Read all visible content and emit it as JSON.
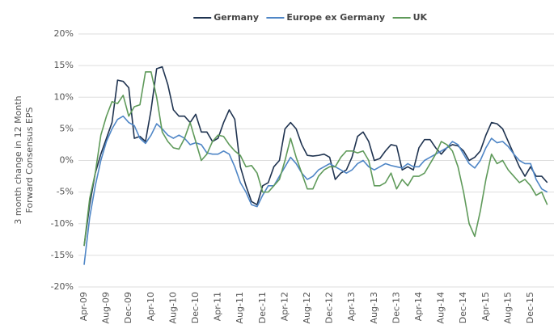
{
  "chart_data": {
    "type": "line",
    "ylabel": [
      "3 month change in 12 Month",
      "Forward Consensus EPS"
    ],
    "categories": [
      "Apr-09",
      null,
      null,
      null,
      "Aug-09",
      null,
      null,
      null,
      "Dec-09",
      null,
      null,
      null,
      "Apr-10",
      null,
      null,
      null,
      "Aug-10",
      null,
      null,
      null,
      "Dec-10",
      null,
      null,
      null,
      "Apr-11",
      null,
      null,
      null,
      "Aug-11",
      null,
      null,
      null,
      "Dec-11",
      null,
      null,
      null,
      "Apr-12",
      null,
      null,
      null,
      "Aug-12",
      null,
      null,
      null,
      "Dec-12",
      null,
      null,
      null,
      "Apr-13",
      null,
      null,
      null,
      "Aug-13",
      null,
      null,
      null,
      "Dec-13",
      null,
      null,
      null,
      "Apr-14",
      null,
      null,
      null,
      "Aug-14",
      null,
      null,
      null,
      "Dec-14",
      null,
      null,
      null,
      "Apr-15",
      null,
      null,
      null,
      "Aug-15",
      null,
      null,
      null,
      "Dec-15",
      null,
      null,
      null
    ],
    "series": [
      {
        "name": "Germany",
        "color": "#1f3350",
        "values": [
          -13.5,
          -7,
          -2,
          1,
          3.5,
          6,
          12.7,
          12.5,
          11.5,
          3.5,
          3.8,
          3,
          8,
          14.5,
          14.8,
          12,
          8,
          7,
          7,
          6,
          7.3,
          4.5,
          4.5,
          3,
          3.5,
          6,
          8,
          6.5,
          -1,
          -4,
          -6.5,
          -7,
          -4,
          -3.5,
          -1,
          0,
          5,
          6,
          5,
          2.5,
          0.8,
          0.7,
          0.8,
          1,
          0.5,
          -3,
          -2,
          -1.5,
          0.5,
          3.8,
          4.5,
          3,
          0,
          0.3,
          1.5,
          2.5,
          2.3,
          -1.5,
          -1,
          -1.5,
          2,
          3.3,
          3.3,
          2,
          1,
          2,
          2.5,
          2.3,
          1.5,
          0,
          0.5,
          1.5,
          4,
          6,
          5.8,
          5,
          3,
          1,
          -1,
          -2.5,
          -1,
          -2.5,
          -2.5,
          -3.5
        ]
      },
      {
        "name": "Europe ex Germany",
        "color": "#4f86c6",
        "values": [
          -16.5,
          -9,
          -4,
          0,
          3,
          5,
          6.5,
          7,
          6,
          5.5,
          3.5,
          2.7,
          4,
          5.8,
          5,
          4,
          3.5,
          4,
          3.5,
          2.5,
          2.8,
          2.5,
          1.2,
          1,
          1,
          1.5,
          1,
          -1,
          -3.5,
          -5,
          -7,
          -7.3,
          -5.5,
          -4,
          -4,
          -2.5,
          -1,
          0.5,
          -0.5,
          -2,
          -3,
          -2.5,
          -1.5,
          -1,
          -0.5,
          -1,
          -1.5,
          -2,
          -1.5,
          -0.5,
          0,
          -1,
          -1.5,
          -1,
          -0.5,
          -0.8,
          -1,
          -1.2,
          -0.5,
          -1,
          -1,
          0,
          0.5,
          1,
          1.5,
          2,
          3,
          2.5,
          1,
          -0.5,
          -1.2,
          0,
          2,
          3.5,
          2.8,
          3,
          2.2,
          1,
          0,
          -0.5,
          -0.5,
          -3,
          -4.5,
          -5
        ]
      },
      {
        "name": "UK",
        "color": "#5f9a5a",
        "values": [
          -13.5,
          -6,
          -2,
          4,
          7,
          9.3,
          9,
          10.3,
          7,
          8.5,
          8.8,
          14,
          14,
          10,
          4.5,
          3,
          2,
          1.8,
          3.5,
          6,
          3,
          0,
          1,
          3,
          4,
          3.8,
          2.5,
          1.5,
          0.8,
          -1,
          -0.8,
          -2,
          -5,
          -5,
          -4,
          -3,
          0,
          3.5,
          0.5,
          -2,
          -4.5,
          -4.5,
          -2.5,
          -1.5,
          -1,
          -1,
          0.5,
          1.5,
          1.5,
          1.2,
          1.5,
          0,
          -4,
          -4,
          -3.5,
          -2,
          -4.5,
          -3,
          -4,
          -2.5,
          -2.5,
          -2,
          -0.5,
          1,
          3,
          2.5,
          1.5,
          -1,
          -5,
          -10,
          -12,
          -8,
          -3,
          1,
          -0.5,
          0,
          -1.5,
          -2.5,
          -3.5,
          -3,
          -4,
          -5.5,
          -5,
          -7
        ]
      }
    ],
    "ylim": [
      -20,
      20
    ],
    "yticks": [
      {
        "value": -20,
        "label": "-20%"
      },
      {
        "value": -15,
        "label": "-15%"
      },
      {
        "value": -10,
        "label": "-10%"
      },
      {
        "value": -5,
        "label": "-5%"
      },
      {
        "value": 0,
        "label": "0%"
      },
      {
        "value": 5,
        "label": "5%"
      },
      {
        "value": 10,
        "label": "10%"
      },
      {
        "value": 15,
        "label": "15%"
      },
      {
        "value": 20,
        "label": "20%"
      }
    ],
    "grid": true,
    "legend": "top"
  }
}
